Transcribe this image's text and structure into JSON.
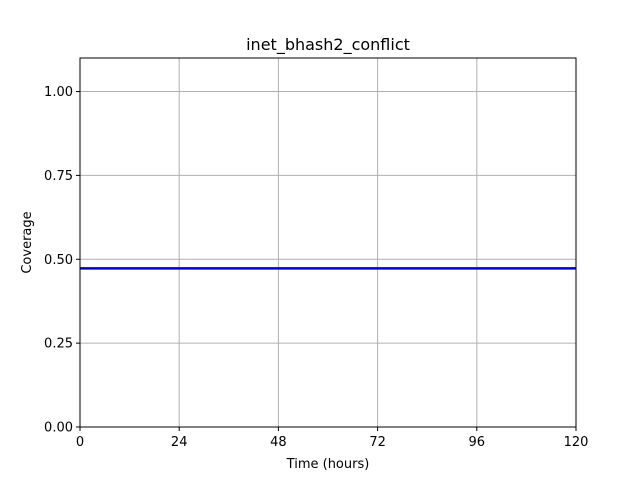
{
  "chart_data": {
    "type": "line",
    "title": "inet_bhash2_conflict",
    "xlabel": "Time (hours)",
    "ylabel": "Coverage",
    "xlim": [
      0,
      120
    ],
    "ylim": [
      0,
      1.1
    ],
    "x_ticks": [
      0,
      24,
      48,
      72,
      96,
      120
    ],
    "x_tick_labels": [
      "0",
      "24",
      "48",
      "72",
      "96",
      "120"
    ],
    "y_ticks": [
      0,
      0.25,
      0.5,
      0.75,
      1.0
    ],
    "y_tick_labels": [
      "0.00",
      "0.25",
      "0.50",
      "0.75",
      "1.00"
    ],
    "grid": true,
    "series": [
      {
        "x": [
          0,
          120
        ],
        "y": [
          0.473,
          0.473
        ],
        "color": "#0000cc"
      }
    ]
  }
}
